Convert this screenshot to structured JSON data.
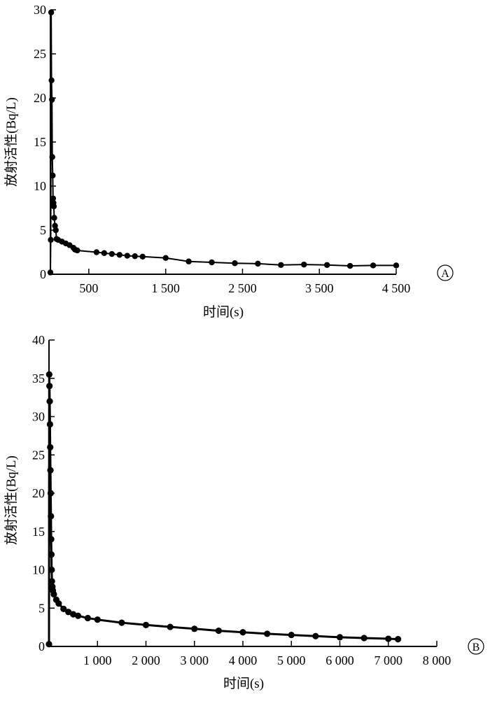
{
  "chart_data": [
    {
      "type": "line",
      "panel_label": "A",
      "ylabel": "放射活性(Bq/L)",
      "xlabel": "时间(s)",
      "ylim": [
        0,
        30
      ],
      "xlim": [
        0,
        4500
      ],
      "yticks": [
        0,
        5,
        10,
        15,
        20,
        25,
        30
      ],
      "ytick_labels": [
        "0",
        "5",
        "10",
        "15",
        "20",
        "25",
        "30"
      ],
      "xticks": [
        500,
        1500,
        2500,
        3500,
        4500
      ],
      "xtick_labels": [
        "500",
        "1 500",
        "2 500",
        "3 500",
        "4 500"
      ],
      "grid": false,
      "series": [
        {
          "x": [
            0,
            5,
            10,
            15,
            20,
            25,
            30,
            35,
            40,
            45,
            50,
            60,
            70,
            80,
            100,
            150,
            200,
            250,
            300,
            320,
            350,
            600,
            700,
            800,
            900,
            1000,
            1100,
            1200,
            1500,
            1800,
            2100,
            2400,
            2700,
            3000,
            3300,
            3600,
            3900,
            4200,
            4500
          ],
          "y": [
            0.2,
            3.9,
            29.7,
            22.0,
            19.8,
            13.3,
            11.2,
            8.6,
            8.1,
            7.7,
            6.4,
            5.5,
            5.0,
            4.0,
            3.9,
            3.7,
            3.5,
            3.3,
            3.0,
            2.8,
            2.7,
            2.5,
            2.4,
            2.3,
            2.2,
            2.1,
            2.05,
            2.0,
            1.85,
            1.45,
            1.35,
            1.25,
            1.2,
            1.05,
            1.1,
            1.05,
            0.95,
            1.0,
            1.0
          ]
        }
      ]
    },
    {
      "type": "line",
      "panel_label": "B",
      "ylabel": "放射活性(Bq/L)",
      "xlabel": "时间(s)",
      "ylim": [
        0,
        40
      ],
      "xlim": [
        0,
        8000
      ],
      "yticks": [
        0,
        5,
        10,
        15,
        20,
        25,
        30,
        35,
        40
      ],
      "ytick_labels": [
        "0",
        "5",
        "10",
        "15",
        "20",
        "25",
        "30",
        "35",
        "40"
      ],
      "xticks": [
        1000,
        2000,
        3000,
        4000,
        5000,
        6000,
        7000,
        8000
      ],
      "xtick_labels": [
        "1 000",
        "2 000",
        "3 000",
        "4 000",
        "5 000",
        "6 000",
        "7 000",
        "8 000"
      ],
      "grid": false,
      "series": [
        {
          "x": [
            0,
            5,
            10,
            15,
            20,
            25,
            30,
            35,
            40,
            45,
            50,
            55,
            60,
            70,
            80,
            100,
            150,
            200,
            300,
            400,
            500,
            600,
            800,
            1000,
            1500,
            2000,
            2500,
            3000,
            3500,
            4000,
            4500,
            5000,
            5500,
            6000,
            6500,
            7000,
            7200
          ],
          "y": [
            0.3,
            35.5,
            34.0,
            32.0,
            29.0,
            26.0,
            23.0,
            20.0,
            17.0,
            14.0,
            12.0,
            10.0,
            8.5,
            7.8,
            7.3,
            6.8,
            6.1,
            5.6,
            4.9,
            4.5,
            4.2,
            4.0,
            3.7,
            3.5,
            3.1,
            2.8,
            2.55,
            2.3,
            2.05,
            1.85,
            1.65,
            1.5,
            1.35,
            1.2,
            1.1,
            1.0,
            0.95
          ]
        }
      ]
    }
  ]
}
